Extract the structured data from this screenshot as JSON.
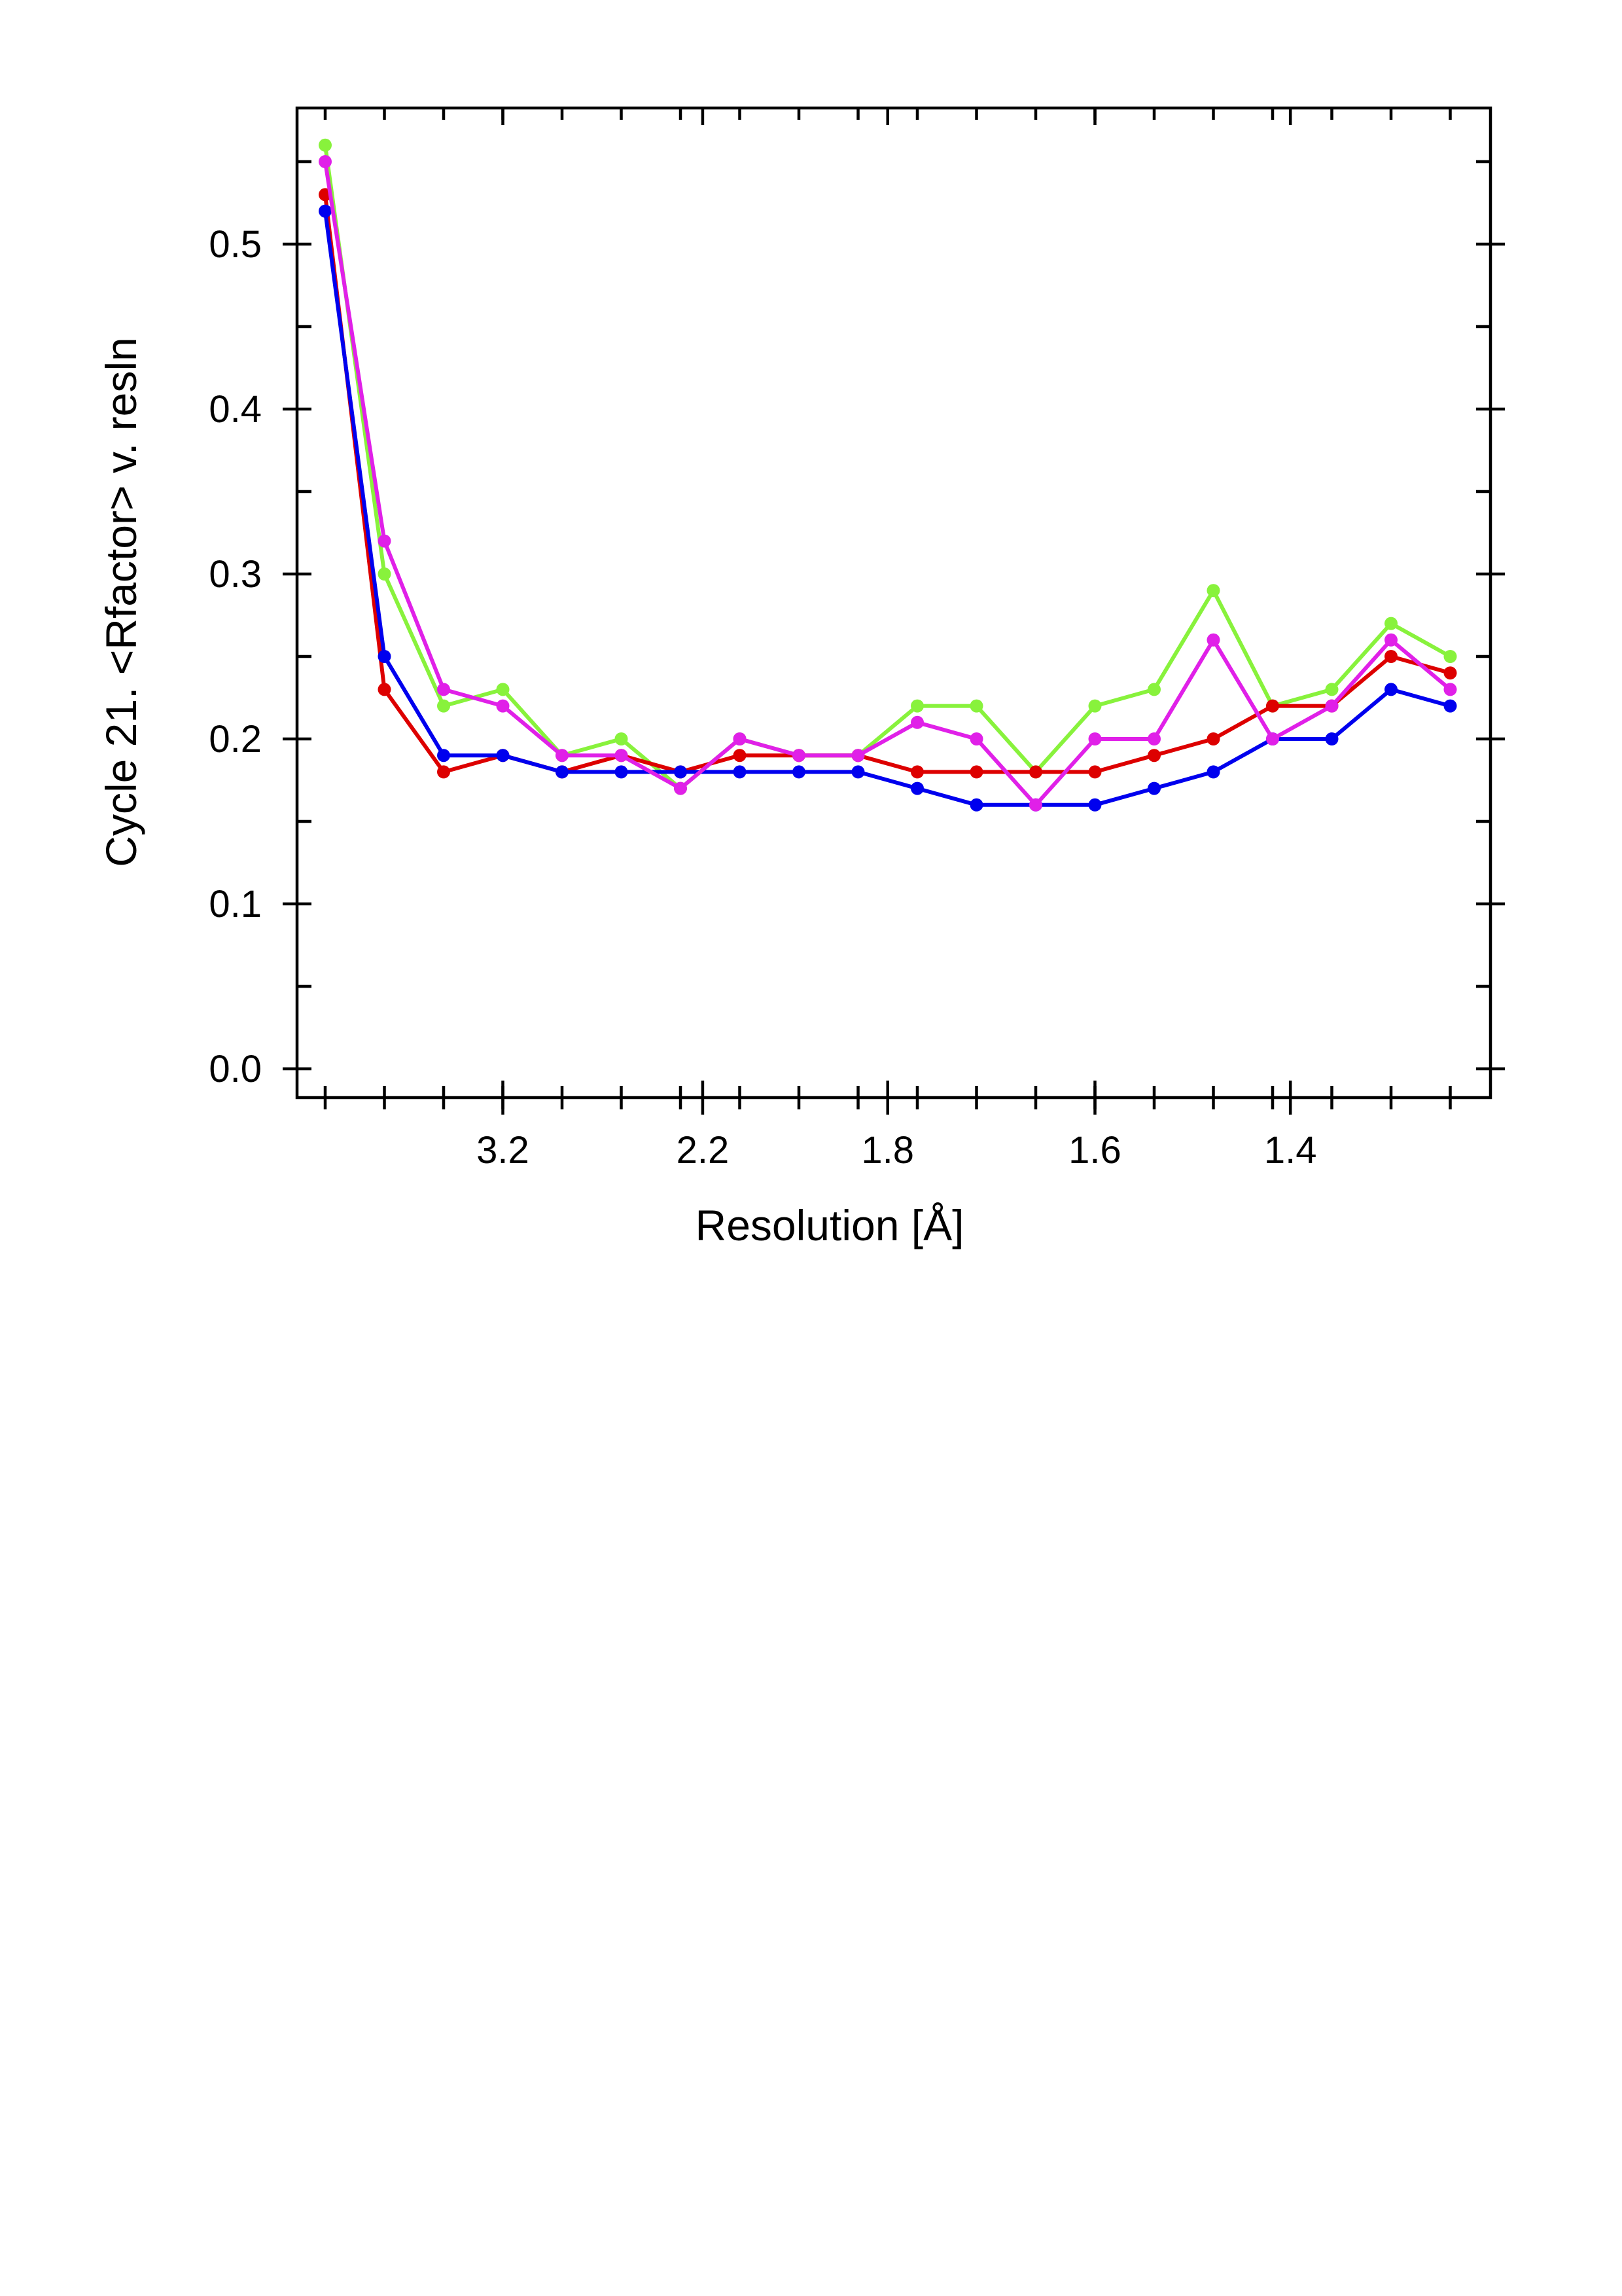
{
  "chart_data": {
    "type": "line",
    "xlabel": "Resolution [Å]",
    "ylabel": "Cycle 21. <Rfactor> v. resln",
    "x_index": [
      0,
      1,
      2,
      3,
      4,
      5,
      6,
      7,
      8,
      9,
      10,
      11,
      12,
      13,
      14,
      15,
      16,
      17,
      18,
      19
    ],
    "x_ticks": [
      {
        "index": 3,
        "label": "3.2"
      },
      {
        "index": 6.375,
        "label": "2.2"
      },
      {
        "index": 9.5,
        "label": "1.8"
      },
      {
        "index": 13,
        "label": "1.6"
      },
      {
        "index": 16.3,
        "label": "1.4"
      }
    ],
    "ylim": [
      -0.02,
      0.585
    ],
    "y_ticks": [
      "0.0",
      "0.1",
      "0.2",
      "0.3",
      "0.4",
      "0.5"
    ],
    "y_tick_values": [
      0.0,
      0.1,
      0.2,
      0.3,
      0.4,
      0.5
    ],
    "y_minor_ticks": [
      0.05,
      0.15,
      0.25,
      0.35,
      0.45,
      0.55
    ],
    "legend": "none",
    "grid": false,
    "series": [
      {
        "color": "#88f23c",
        "values": [
          0.56,
          0.3,
          0.22,
          0.23,
          0.19,
          0.2,
          0.17,
          0.2,
          0.19,
          0.19,
          0.22,
          0.22,
          0.18,
          0.22,
          0.23,
          0.29,
          0.22,
          0.23,
          0.27,
          0.25
        ]
      },
      {
        "color": "#dd0000",
        "values": [
          0.53,
          0.23,
          0.18,
          0.19,
          0.18,
          0.19,
          0.18,
          0.19,
          0.19,
          0.19,
          0.18,
          0.18,
          0.18,
          0.18,
          0.19,
          0.2,
          0.22,
          0.22,
          0.25,
          0.24
        ]
      },
      {
        "color": "#0000ee",
        "values": [
          0.52,
          0.25,
          0.19,
          0.19,
          0.18,
          0.18,
          0.18,
          0.18,
          0.18,
          0.18,
          0.17,
          0.16,
          0.16,
          0.16,
          0.17,
          0.18,
          0.2,
          0.2,
          0.23,
          0.22
        ]
      },
      {
        "color": "#e020e8",
        "values": [
          0.55,
          0.32,
          0.23,
          0.22,
          0.19,
          0.19,
          0.17,
          0.2,
          0.19,
          0.19,
          0.21,
          0.2,
          0.16,
          0.2,
          0.2,
          0.26,
          0.2,
          0.22,
          0.26,
          0.23
        ]
      }
    ]
  }
}
